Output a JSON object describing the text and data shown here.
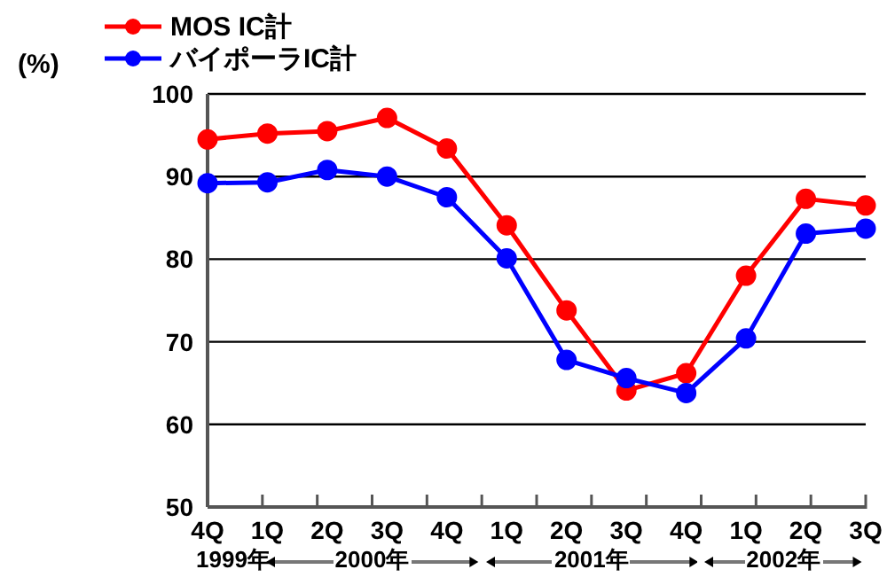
{
  "chart_data": {
    "type": "line",
    "ylabel": "(%)",
    "categories": [
      "4Q",
      "1Q",
      "2Q",
      "3Q",
      "4Q",
      "1Q",
      "2Q",
      "3Q",
      "4Q",
      "1Q",
      "2Q",
      "3Q"
    ],
    "series": [
      {
        "name": "MOS IC計",
        "color": "#ff0000",
        "values": [
          94.5,
          95.2,
          95.5,
          97.1,
          93.4,
          84.1,
          73.8,
          64.1,
          66.2,
          78.0,
          87.3,
          86.5
        ]
      },
      {
        "name": "バイポーラIC計",
        "color": "#0000ff",
        "values": [
          89.2,
          89.3,
          90.8,
          90.0,
          87.5,
          80.1,
          67.8,
          65.6,
          63.8,
          70.4,
          83.1,
          83.7
        ]
      }
    ],
    "ylim": [
      50,
      100
    ],
    "yticks": [
      50,
      60,
      70,
      80,
      90,
      100
    ],
    "grid": "y",
    "legend": "top left",
    "marker": "circle",
    "line_style": "solid",
    "annotations": [
      "1999年",
      "2000年",
      "2001年",
      "2002年"
    ]
  }
}
